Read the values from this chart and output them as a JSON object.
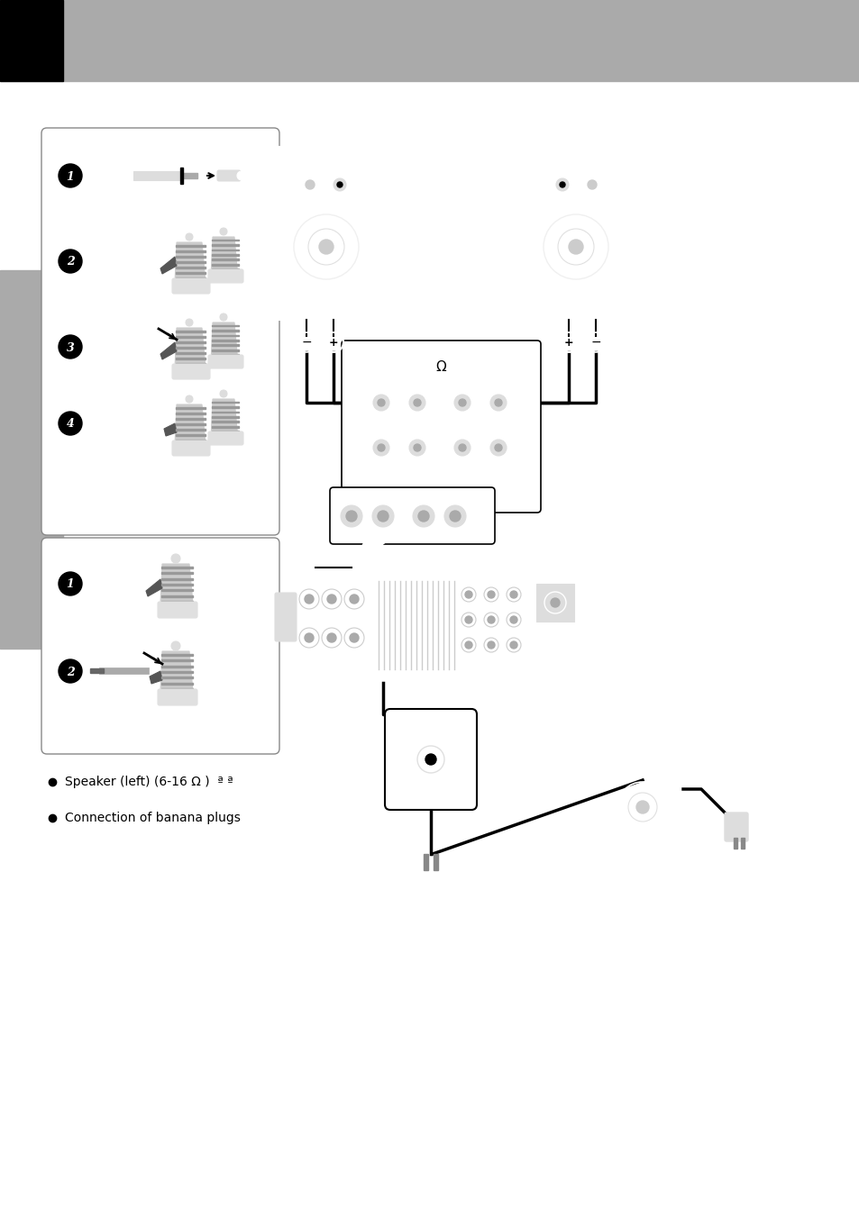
{
  "fig_width": 9.54,
  "fig_height": 13.51,
  "dpi": 100,
  "bg": "#ffffff",
  "header_gray": "#aaaaaa",
  "header_black": "#000000",
  "sidebar_gray": "#aaaaaa",
  "box_edge": "#666666",
  "wire_color": "#000000",
  "plug_body": "#cccccc",
  "plug_ridge": "#999999",
  "plug_cap": "#e0e0e0",
  "plug_dark": "#555555",
  "speaker_fill": "#ffffff",
  "amp_fill": "#ffffff",
  "ps_fill": "#ffffff",
  "bullet1": "Speaker (left) (6-16 Ω )  ª ª",
  "bullet2": "Connection of banana plugs"
}
